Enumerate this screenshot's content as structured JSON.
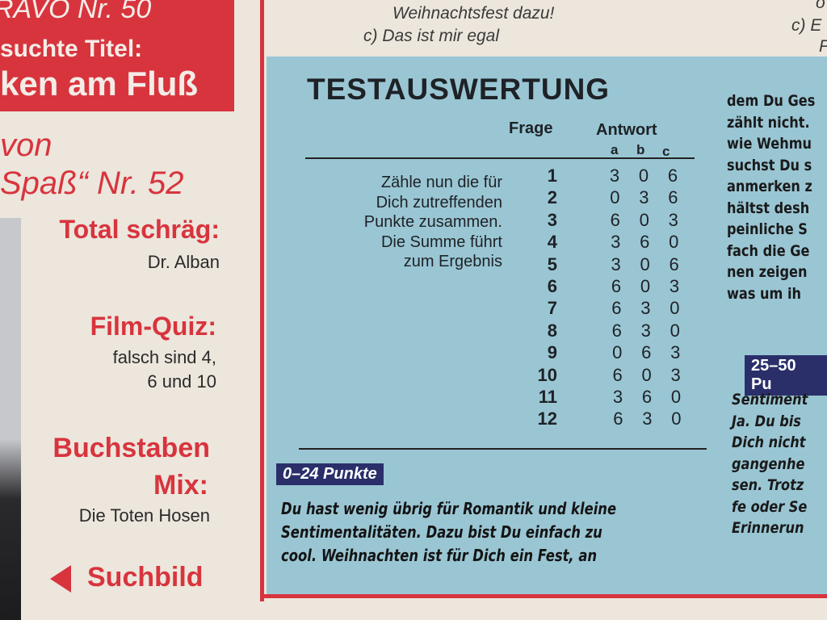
{
  "left_column": {
    "red_box": {
      "line1": "RAVO Nr. 50",
      "line2": "suchte Titel:",
      "line3": "ken am Fluß"
    },
    "von": "von",
    "spass": "Spaß“ Nr. 52",
    "items": [
      {
        "heading": "Total schräg:",
        "lines": [
          "Dr. Alban"
        ]
      },
      {
        "heading": "Film-Quiz:",
        "lines": [
          "falsch sind 4,",
          "6 und 10"
        ]
      },
      {
        "heading": "Buchstaben",
        "heading2": "Mix:",
        "lines": [
          "Die Toten Hosen"
        ]
      }
    ],
    "suchbild": "Suchbild"
  },
  "top_text": {
    "line1": "Weihnachtsfest dazu!",
    "line2": "c) Das ist mir egal",
    "right1": "o",
    "right2": "c) E",
    "right3": "F"
  },
  "evaluation": {
    "title": "TESTAUSWERTUNG",
    "col_frage": "Frage",
    "col_antwort": "Antwort",
    "sub_cols": [
      "a",
      "b",
      "c"
    ],
    "intro_lines": [
      "Zähle nun die für",
      "Dich zutreffenden",
      "Punkte zusammen.",
      "Die Summe führt",
      "zum Ergebnis"
    ],
    "rows": [
      {
        "q": "1",
        "a": "3",
        "b": "0",
        "c": "6"
      },
      {
        "q": "2",
        "a": "0",
        "b": "3",
        "c": "6"
      },
      {
        "q": "3",
        "a": "6",
        "b": "0",
        "c": "3"
      },
      {
        "q": "4",
        "a": "3",
        "b": "6",
        "c": "0"
      },
      {
        "q": "5",
        "a": "3",
        "b": "0",
        "c": "6"
      },
      {
        "q": "6",
        "a": "6",
        "b": "0",
        "c": "3"
      },
      {
        "q": "7",
        "a": "6",
        "b": "3",
        "c": "0"
      },
      {
        "q": "8",
        "a": "6",
        "b": "3",
        "c": "0"
      },
      {
        "q": "9",
        "a": "0",
        "b": "6",
        "c": "3"
      },
      {
        "q": "10",
        "a": "6",
        "b": "0",
        "c": "3"
      },
      {
        "q": "11",
        "a": "3",
        "b": "6",
        "c": "0"
      },
      {
        "q": "12",
        "a": "6",
        "b": "3",
        "c": "0"
      }
    ],
    "result1": {
      "badge": "0–24 Punkte",
      "lines": [
        "Du hast wenig übrig für Romantik und kleine",
        "Sentimentalitäten. Dazu bist Du einfach zu",
        "cool. Weihnachten ist für Dich ein Fest, an"
      ]
    },
    "right_column": {
      "lines": [
        "dem Du Ges",
        "zählt nicht.",
        "wie Wehmu",
        "suchst Du s",
        "anmerken z",
        "hältst desh",
        "peinliche S",
        "fach die Ge",
        "nen zeigen",
        "was um ih"
      ],
      "badge": "25–50 Pu",
      "lines2": [
        "Sentiment",
        "Ja. Du bis",
        "Dich nicht",
        "gangenhe",
        "sen. Trotz",
        "fe oder Se",
        "Erinnerun"
      ]
    }
  },
  "colors": {
    "red": "#d8343e",
    "panel_blue": "#9ac6d4",
    "badge_navy": "#2a2f6a",
    "paper": "#ece6dc"
  }
}
